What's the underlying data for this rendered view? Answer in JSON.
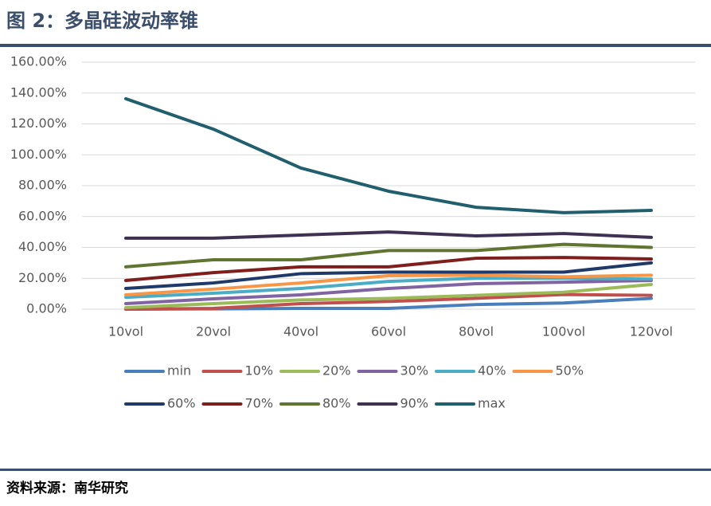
{
  "chart_data": {
    "type": "line",
    "title": "图 2：多晶硅波动率锥",
    "source": "资料来源：南华研究",
    "categories": [
      "10vol",
      "20vol",
      "40vol",
      "60vol",
      "80vol",
      "100vol",
      "120vol"
    ],
    "ylim": [
      0,
      160
    ],
    "yticks": [
      {
        "value": 0,
        "label": "0.00%"
      },
      {
        "value": 20,
        "label": "20.00%"
      },
      {
        "value": 40,
        "label": "40.00%"
      },
      {
        "value": 60,
        "label": "60.00%"
      },
      {
        "value": 80,
        "label": "80.00%"
      },
      {
        "value": 100,
        "label": "100.00%"
      },
      {
        "value": 120,
        "label": "120.00%"
      },
      {
        "value": 140,
        "label": "140.00%"
      },
      {
        "value": 160,
        "label": "160.00%"
      }
    ],
    "grid": true,
    "series": [
      {
        "name": "min",
        "color": "#4a7ebb",
        "values": [
          0,
          0.2,
          0.5,
          0.5,
          3,
          4,
          7
        ]
      },
      {
        "name": "10%",
        "color": "#c0504d",
        "values": [
          0,
          0.5,
          3.6,
          5,
          7,
          9.5,
          9
        ]
      },
      {
        "name": "20%",
        "color": "#9bbb59",
        "values": [
          1,
          3.6,
          6,
          7,
          9,
          11,
          16
        ]
      },
      {
        "name": "30%",
        "color": "#8064a2",
        "values": [
          3.6,
          6.7,
          9.3,
          13.4,
          16.5,
          17.5,
          18.6
        ]
      },
      {
        "name": "40%",
        "color": "#4bacc6",
        "values": [
          7.7,
          10.3,
          13.4,
          18,
          20,
          20,
          19.5
        ]
      },
      {
        "name": "50%",
        "color": "#f79646",
        "values": [
          9.3,
          13,
          17,
          21.7,
          22,
          21,
          22
        ]
      },
      {
        "name": "60%",
        "color": "#1f3a68",
        "values": [
          13.4,
          17,
          23,
          24,
          24,
          24,
          30
        ]
      },
      {
        "name": "70%",
        "color": "#7f1f1d",
        "values": [
          18.6,
          23.7,
          27.4,
          27.4,
          33,
          33.5,
          32.5
        ]
      },
      {
        "name": "80%",
        "color": "#5f7530",
        "values": [
          27.4,
          32,
          32,
          38,
          38,
          42,
          40
        ]
      },
      {
        "name": "90%",
        "color": "#3f3151",
        "values": [
          46,
          46,
          48,
          50,
          47.5,
          49,
          46.5
        ]
      },
      {
        "name": "max",
        "color": "#215f6e",
        "values": [
          136.3,
          116.6,
          91.4,
          76.4,
          66,
          62.5,
          64
        ]
      }
    ]
  }
}
